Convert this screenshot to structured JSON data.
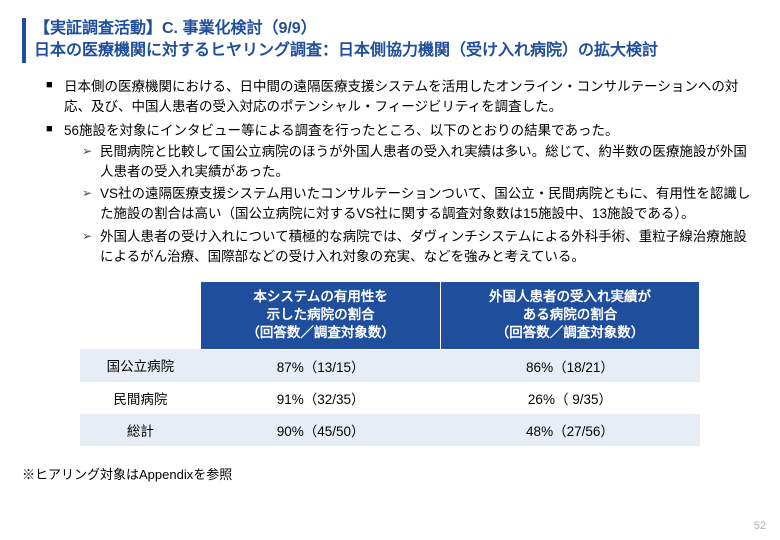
{
  "title": {
    "line1": "【実証調査活動】C. 事業化検討（9/9）",
    "line2": "日本の医療機関に対するヒヤリング調査：日本側協力機関（受け入れ病院）の拡大検討"
  },
  "bullets": {
    "b1": "日本側の医療機関における、日中間の遠隔医療支援システムを活用したオンライン・コンサルテーションへの対応、及び、中国人患者の受入対応のポテンシャル・フィージビリティを調査した。",
    "b2": "56施設を対象にインタビュー等による調査を行ったところ、以下のとおりの結果であった。",
    "b2a": "民間病院と比較して国公立病院のほうが外国人患者の受入れ実績は多い。総じて、約半数の医療施設が外国人患者の受入れ実績があった。",
    "b2b": "VS社の遠隔医療支援システム用いたコンサルテーションついて、国公立・民間病院ともに、有用性を認識した施設の割合は高い（国公立病院に対するVS社に関する調査対象数は15施設中、13施設である）。",
    "b2c": "外国人患者の受け入れについて積極的な病院では、ダヴィンチシステムによる外科手術、重粒子線治療施設によるがん治療、国際部などの受け入れ対象の充実、などを強みと考えている。"
  },
  "table": {
    "header": {
      "col1": "本システムの有用性を\n示した病院の割合\n（回答数／調査対象数）",
      "col2": "外国人患者の受入れ実績が\nある病院の割合\n（回答数／調査対象数）"
    },
    "rows": [
      {
        "label": "国公立病院",
        "c1": "87%（13/15）",
        "c2": "86%（18/21）"
      },
      {
        "label": "民間病院",
        "c1": "91%（32/35）",
        "c2": "26%（  9/35）"
      },
      {
        "label": "総計",
        "c1": "90%（45/50）",
        "c2": "48%（27/56）"
      }
    ]
  },
  "footnote": "※ヒアリング対象はAppendixを参照",
  "pagenum": "52",
  "colors": {
    "accent": "#1f4e9c",
    "shade": "#e8ecf4",
    "text": "#000000",
    "pagenum": "#b0b0b0"
  }
}
